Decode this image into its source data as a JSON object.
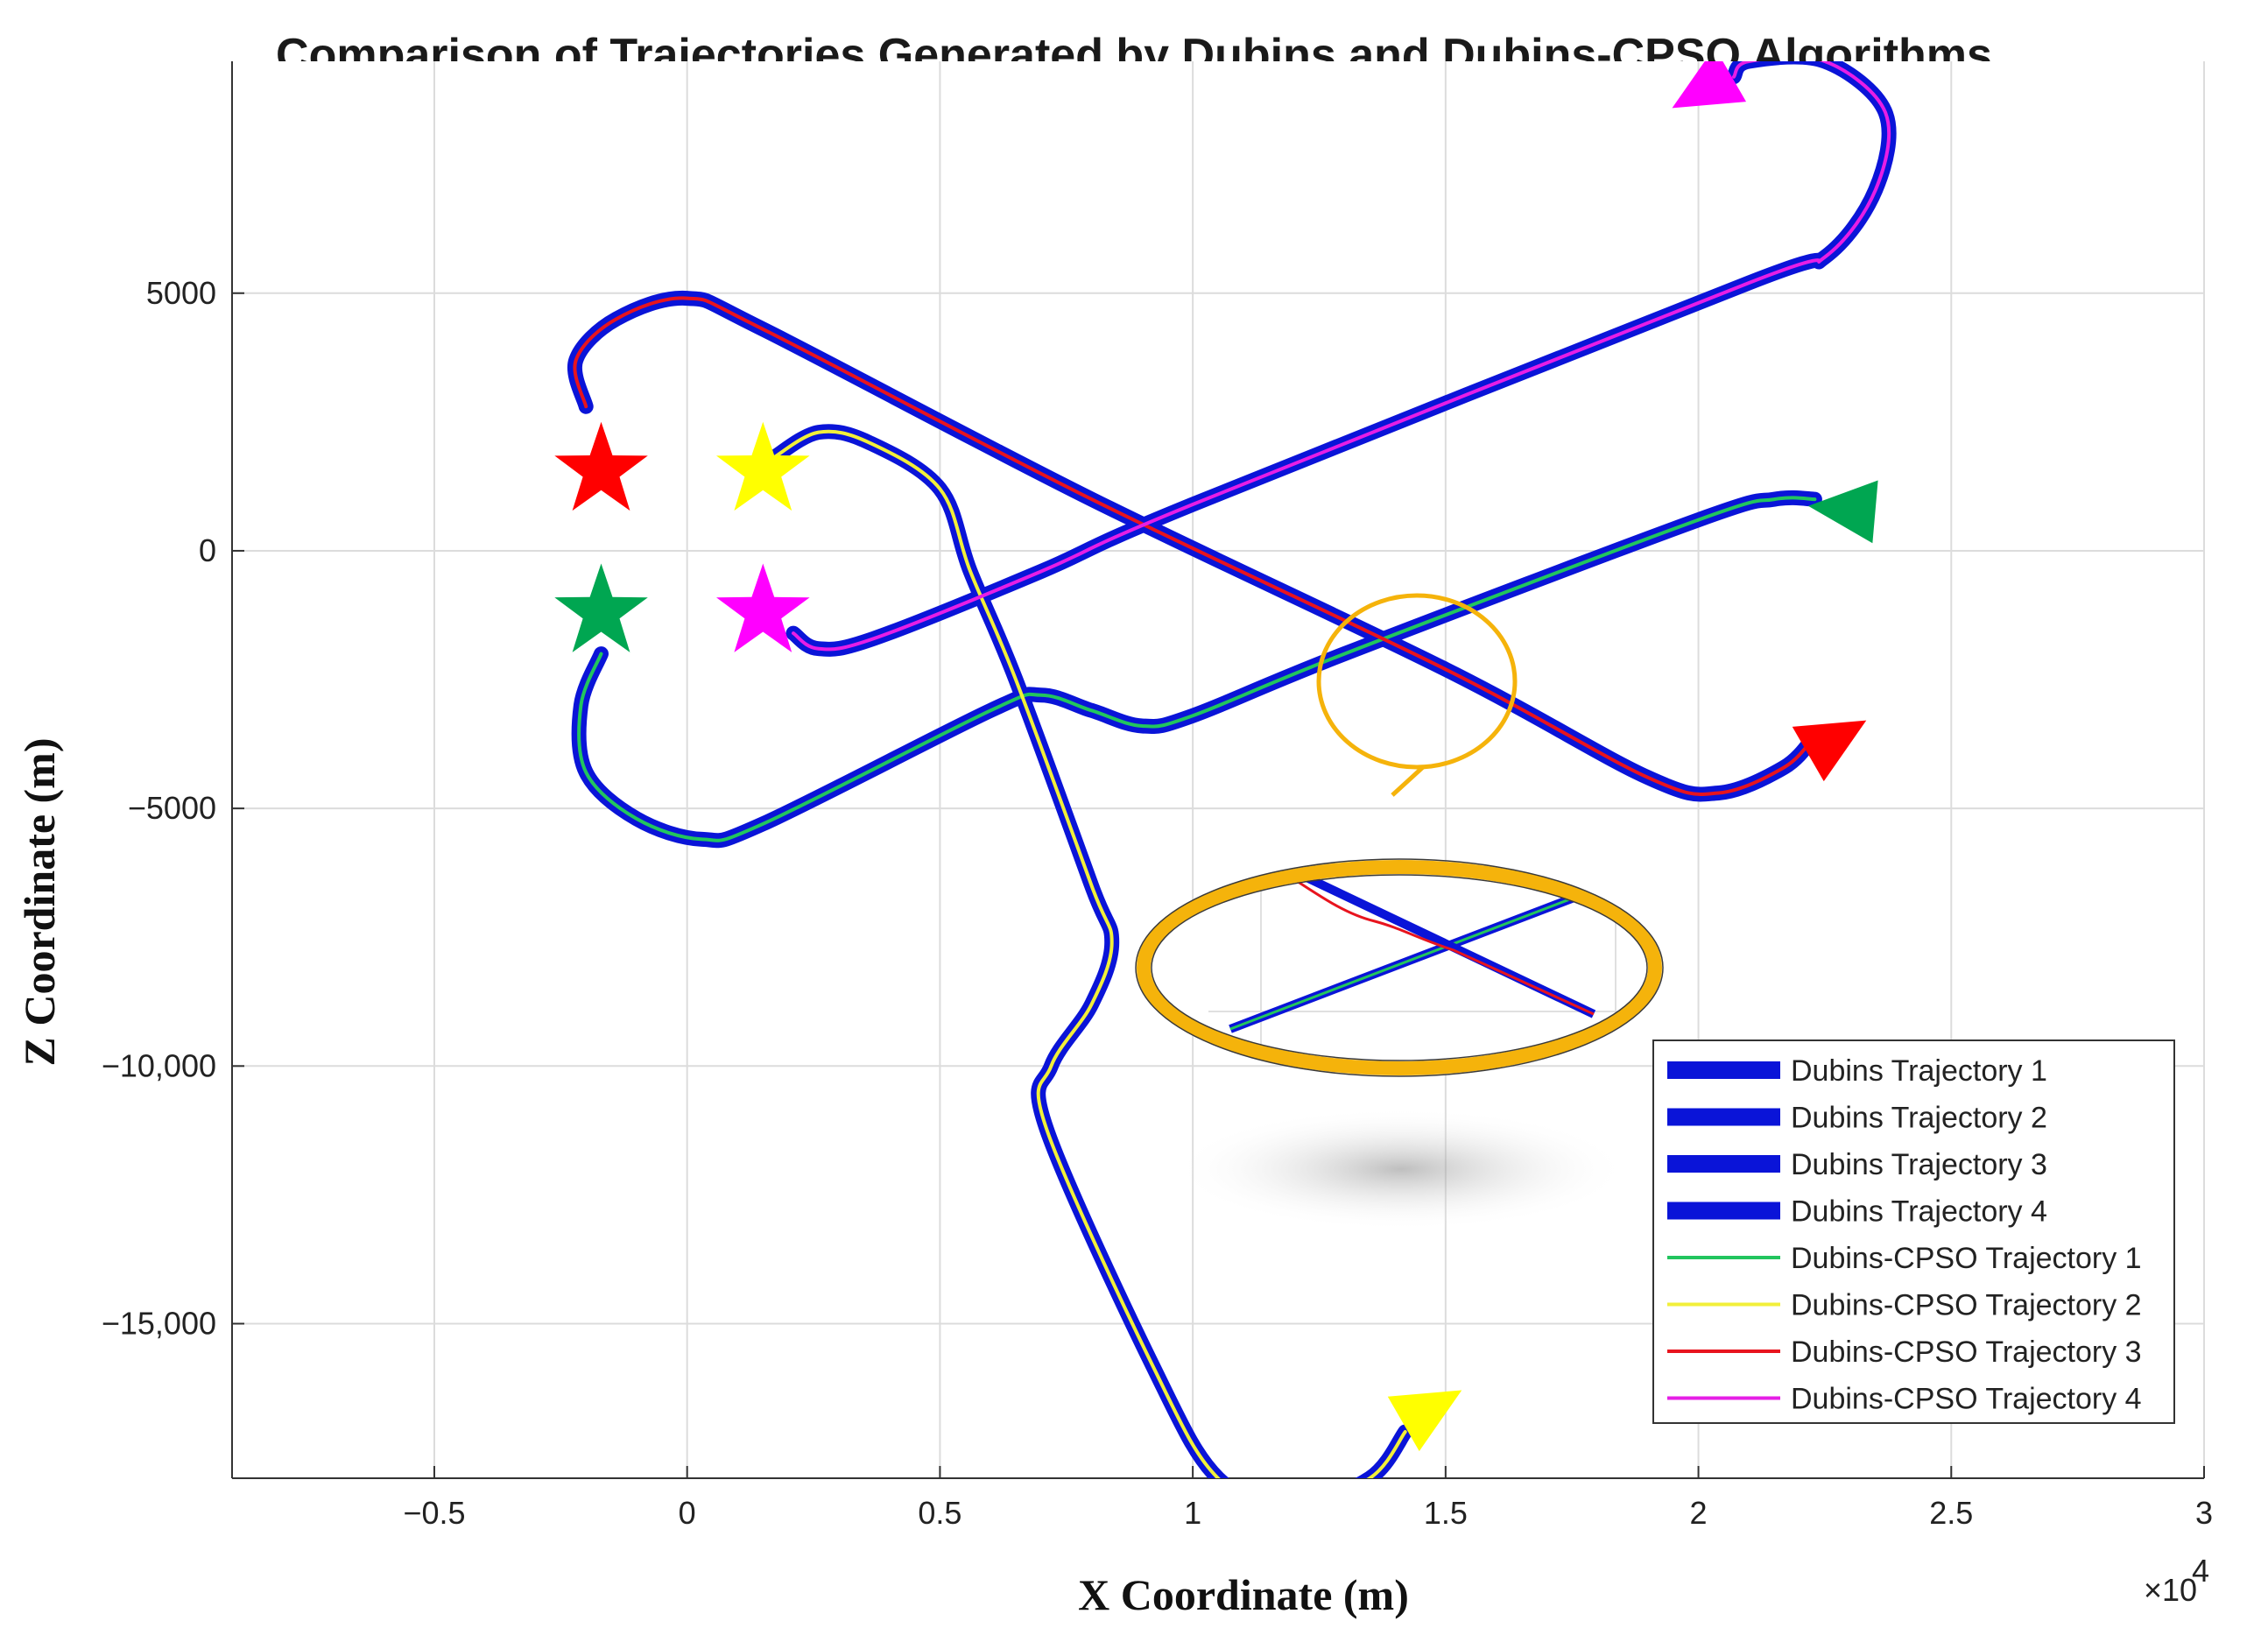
{
  "chart_data": {
    "type": "line",
    "title": "Comparison of Trajectories Generated by Dubins and Dubins-CPSO Algorithms",
    "xlabel": "X Coordinate (m)",
    "ylabel": "Z Coordinate (m)",
    "x_exponent_label": "×10",
    "x_exponent_power": "4",
    "xlim": [
      -9000,
      30000
    ],
    "ylim": [
      -18000,
      9500
    ],
    "grid": true,
    "legend_position": "bottom-right",
    "x_ticks": [
      {
        "value": -5000,
        "label": "−0.5"
      },
      {
        "value": 0,
        "label": "0"
      },
      {
        "value": 5000,
        "label": "0.5"
      },
      {
        "value": 10000,
        "label": "1"
      },
      {
        "value": 15000,
        "label": "1.5"
      },
      {
        "value": 20000,
        "label": "2"
      },
      {
        "value": 25000,
        "label": "2.5"
      },
      {
        "value": 30000,
        "label": "3"
      }
    ],
    "y_ticks": [
      {
        "value": 5000,
        "label": "5000"
      },
      {
        "value": 0,
        "label": "0"
      },
      {
        "value": -5000,
        "label": "−5000"
      },
      {
        "value": -10000,
        "label": "−10,000"
      },
      {
        "value": -15000,
        "label": "−15,000"
      }
    ],
    "series": [
      {
        "name": "Dubins Trajectory 1",
        "color": "#0a14d8",
        "style": "thick",
        "ref": 0
      },
      {
        "name": "Dubins Trajectory 2",
        "color": "#0a14d8",
        "style": "thick",
        "ref": 1
      },
      {
        "name": "Dubins Trajectory 3",
        "color": "#0a14d8",
        "style": "thick",
        "ref": 2
      },
      {
        "name": "Dubins Trajectory 4",
        "color": "#0a14d8",
        "style": "thick",
        "ref": 3
      },
      {
        "name": "Dubins-CPSO Trajectory 1",
        "color": "#22c55e",
        "style": "thin",
        "ref": 0
      },
      {
        "name": "Dubins-CPSO Trajectory 2",
        "color": "#f2ef3a",
        "style": "thin",
        "ref": 1
      },
      {
        "name": "Dubins-CPSO Trajectory 3",
        "color": "#e8141e",
        "style": "thin",
        "ref": 2
      },
      {
        "name": "Dubins-CPSO Trajectory 4",
        "color": "#e61ee6",
        "style": "thin",
        "ref": 3
      }
    ],
    "paths": [
      {
        "id": 1,
        "points": [
          [
            -1700,
            -2000
          ],
          [
            -2100,
            -3000
          ],
          [
            -2000,
            -4300
          ],
          [
            -1000,
            -5200
          ],
          [
            300,
            -5600
          ],
          [
            1500,
            -5300
          ],
          [
            6000,
            -3100
          ],
          [
            7000,
            -2800
          ],
          [
            8000,
            -3100
          ],
          [
            9000,
            -3400
          ],
          [
            10000,
            -3200
          ],
          [
            13000,
            -2000
          ],
          [
            20000,
            600
          ],
          [
            21500,
            1000
          ],
          [
            22300,
            1000
          ]
        ]
      },
      {
        "id": 2,
        "points": [
          [
            1700,
            1800
          ],
          [
            2600,
            2300
          ],
          [
            3600,
            2100
          ],
          [
            5000,
            1200
          ],
          [
            5600,
            -400
          ],
          [
            6500,
            -2500
          ],
          [
            8000,
            -6500
          ],
          [
            8400,
            -7600
          ],
          [
            8000,
            -8800
          ],
          [
            7200,
            -10000
          ],
          [
            7100,
            -11200
          ],
          [
            9200,
            -15800
          ],
          [
            10500,
            -18000
          ],
          [
            12000,
            -18500
          ],
          [
            13500,
            -18000
          ],
          [
            14200,
            -17100
          ]
        ]
      },
      {
        "id": 3,
        "points": [
          [
            -2000,
            2800
          ],
          [
            -2200,
            3700
          ],
          [
            -1400,
            4500
          ],
          [
            0,
            4900
          ],
          [
            1500,
            4300
          ],
          [
            8000,
            1000
          ],
          [
            15000,
            -2300
          ],
          [
            19000,
            -4400
          ],
          [
            20400,
            -4700
          ],
          [
            21700,
            -4200
          ],
          [
            22300,
            -3600
          ]
        ]
      },
      {
        "id": 4,
        "points": [
          [
            2100,
            -1600
          ],
          [
            2600,
            -1900
          ],
          [
            3700,
            -1700
          ],
          [
            7000,
            -400
          ],
          [
            10000,
            900
          ],
          [
            21000,
            5200
          ],
          [
            22500,
            5700
          ],
          [
            23500,
            7000
          ],
          [
            23700,
            8500
          ],
          [
            22500,
            9500
          ],
          [
            21000,
            9500
          ],
          [
            20700,
            9200
          ]
        ]
      }
    ],
    "markers": [
      {
        "shape": "star",
        "color": "#ff0000",
        "x": -1700,
        "y": 1550
      },
      {
        "shape": "star",
        "color": "#ffff00",
        "x": 1500,
        "y": 1550
      },
      {
        "shape": "star",
        "color": "#00a651",
        "x": -1700,
        "y": -1200
      },
      {
        "shape": "star",
        "color": "#ff00ff",
        "x": 1500,
        "y": -1200
      },
      {
        "shape": "triangle",
        "color": "#ff00ff",
        "x": 20200,
        "y": 9000,
        "angle": 150
      },
      {
        "shape": "triangle",
        "color": "#00a651",
        "x": 23000,
        "y": 800,
        "angle": 185
      },
      {
        "shape": "triangle",
        "color": "#ff0000",
        "x": 22600,
        "y": -3700,
        "angle": -30
      },
      {
        "shape": "triangle",
        "color": "#ffff00",
        "x": 14600,
        "y": -16700,
        "angle": -30
      }
    ],
    "annotation": {
      "type": "zoom-inset",
      "center_x": 14200,
      "center_y": -2200,
      "color": "#f5b30b"
    }
  }
}
